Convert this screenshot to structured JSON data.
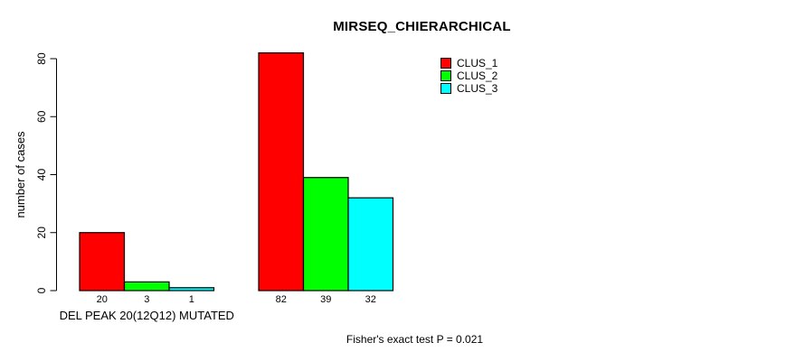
{
  "chart_data": {
    "type": "bar",
    "title": "MIRSEQ_CHIERARCHICAL",
    "ylabel": "number of cases",
    "xlabel": "",
    "categories": [
      "DEL PEAK 20(12Q12) MUTATED",
      ""
    ],
    "series": [
      {
        "name": "CLUS_1",
        "color": "#ff0000",
        "values": [
          20,
          82
        ]
      },
      {
        "name": "CLUS_2",
        "color": "#00ff00",
        "values": [
          3,
          39
        ]
      },
      {
        "name": "CLUS_3",
        "color": "#00ffff",
        "values": [
          1,
          32
        ]
      }
    ],
    "y_ticks": [
      0,
      20,
      40,
      60,
      80
    ],
    "ylim": [
      0,
      82
    ],
    "bar_value_labels": true,
    "bar_border_color": "#000000",
    "legend_position": "top-right",
    "grid": false,
    "annotation": "Fisher's exact test P = 0.021"
  }
}
